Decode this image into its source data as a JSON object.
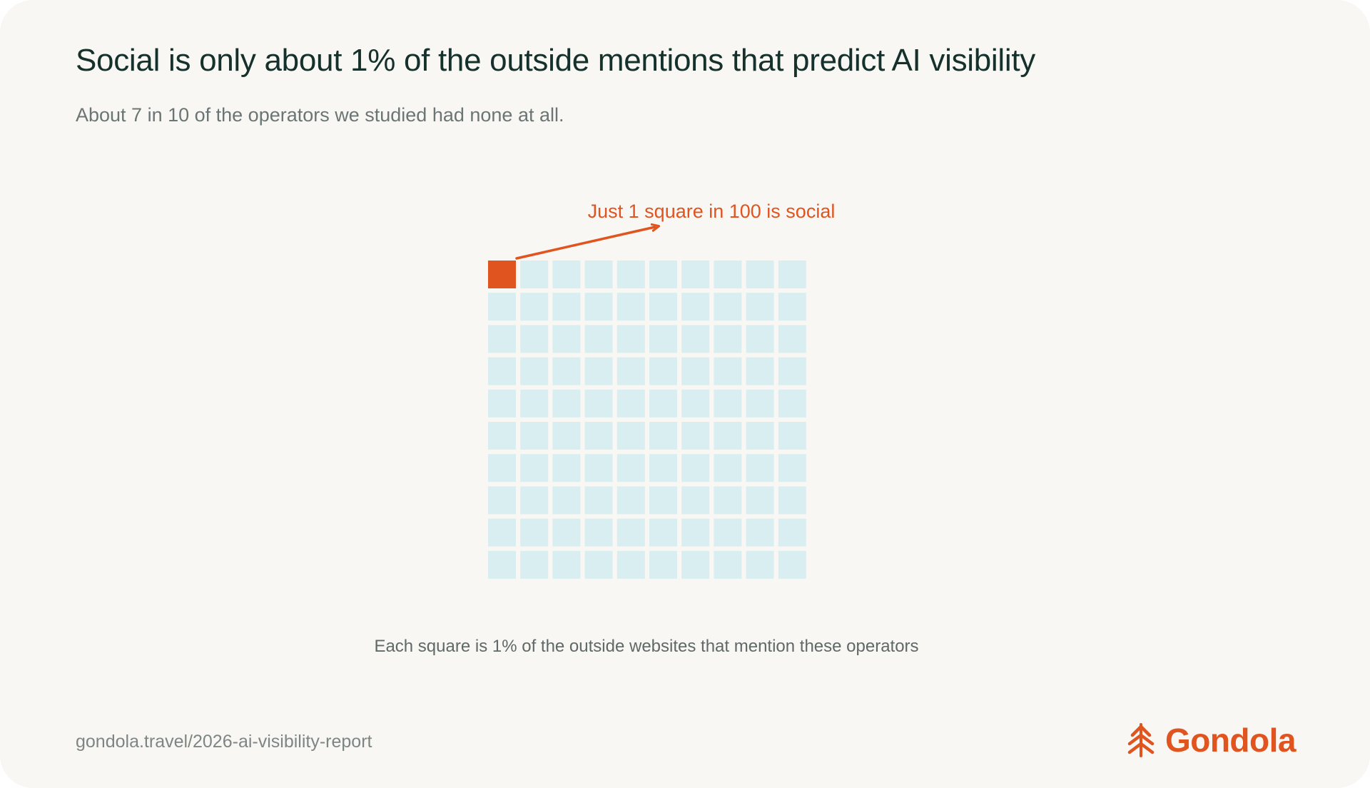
{
  "header": {
    "title": "Social is only about 1% of the outside mentions that predict AI visibility",
    "subtitle": "About 7 in 10 of the operators we studied had none at all."
  },
  "chart_data": {
    "type": "waffle",
    "rows": 10,
    "cols": 10,
    "total": 100,
    "highlighted": 1,
    "highlighted_label": "social",
    "annotation": "Just 1 square in 100 is social",
    "caption": "Each square is 1% of the outside websites that mention these operators",
    "colors": {
      "highlight": "#e0541f",
      "base": "#d9eef0"
    }
  },
  "footer": {
    "url": "gondola.travel/2026-ai-visibility-report",
    "brand": "Gondola",
    "brand_icon": "gondola-logo-icon",
    "brand_color": "#e0541f"
  }
}
